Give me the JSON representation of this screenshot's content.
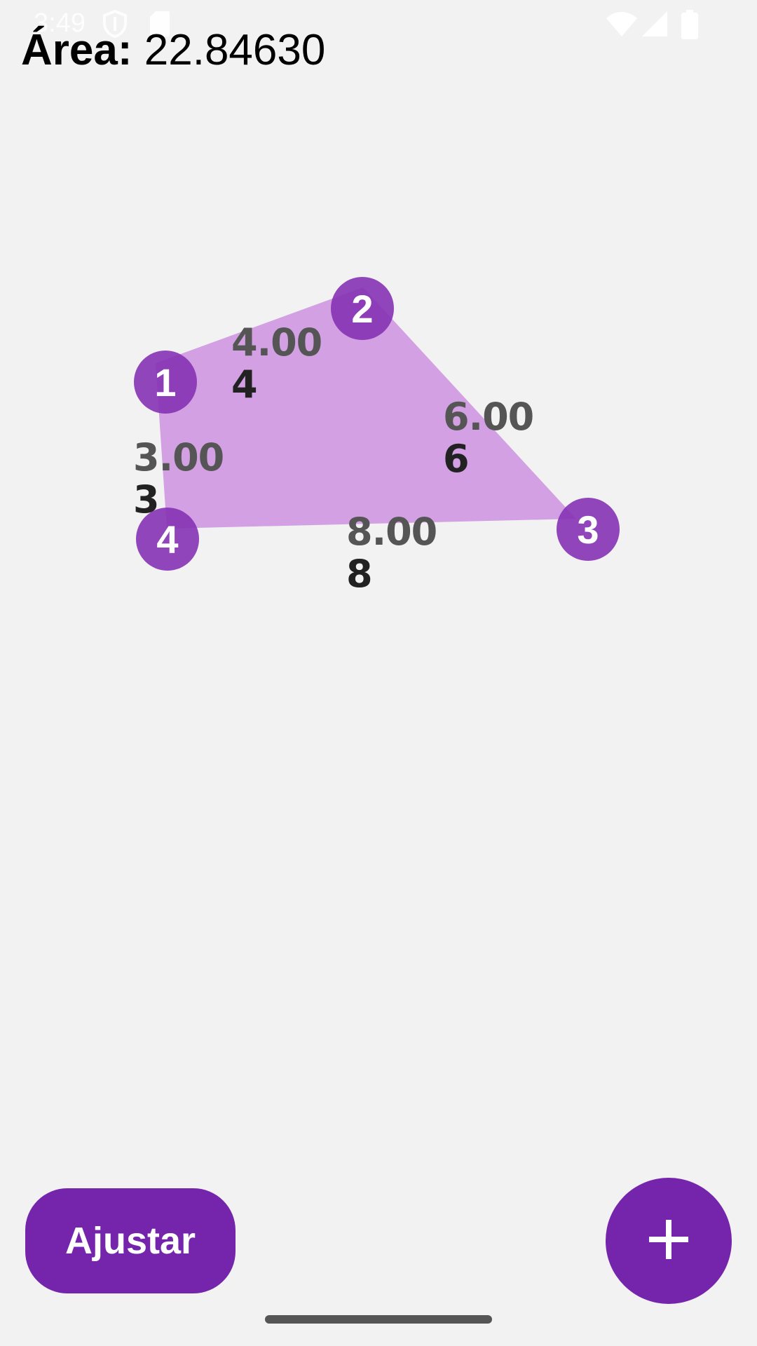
{
  "status_bar": {
    "time": "3:49",
    "icons": [
      "shield-icon",
      "sd-card-icon",
      "wifi-icon",
      "signal-icon",
      "battery-icon"
    ]
  },
  "area": {
    "label": "Área:",
    "value": "22.84630"
  },
  "polygon": {
    "fill_color": "#c98bde",
    "vertex_color": "#8632b4",
    "vertices": [
      {
        "label": "1"
      },
      {
        "label": "2"
      },
      {
        "label": "3"
      },
      {
        "label": "4"
      }
    ],
    "edges": [
      {
        "length": "4.00",
        "number": "4"
      },
      {
        "length": "6.00",
        "number": "6"
      },
      {
        "length": "8.00",
        "number": "8"
      },
      {
        "length": "3.00",
        "number": "3"
      }
    ]
  },
  "buttons": {
    "adjust_label": "Ajustar",
    "add_icon": "plus-icon",
    "accent_color": "#7425ab"
  }
}
